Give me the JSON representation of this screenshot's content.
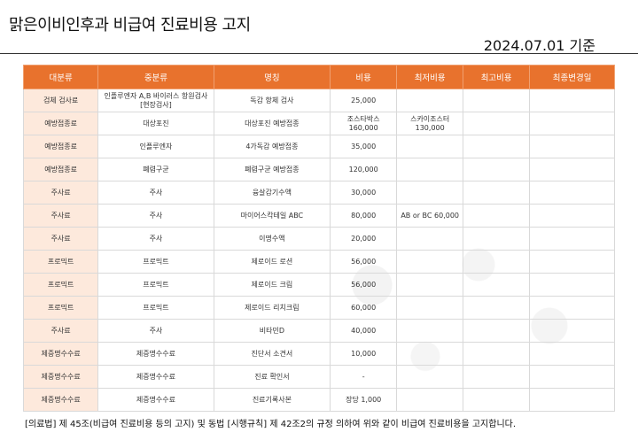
{
  "header": {
    "title": "맑은이비인후과 비급여 진료비용 고지",
    "date": "2024.07.01 기준"
  },
  "table": {
    "columns": [
      "대분류",
      "중분류",
      "명칭",
      "비용",
      "최저비용",
      "최고비용",
      "최종변경일"
    ],
    "rows": [
      [
        "검체 검사료",
        "인플루엔자 A,B 바이러스 항원검사[현장검사]",
        "독감 항체 검사",
        "25,000",
        "",
        "",
        ""
      ],
      [
        "예방접종료",
        "대상포진",
        "대상포진 예방접종",
        "조스타박스 160,000",
        "스카이조스터 130,000",
        "",
        ""
      ],
      [
        "예방접종료",
        "인플루엔자",
        "4가독감 예방접종",
        "35,000",
        "",
        "",
        ""
      ],
      [
        "예방접종료",
        "폐렴구균",
        "폐렴구균 예방접종",
        "120,000",
        "",
        "",
        ""
      ],
      [
        "주사료",
        "주사",
        "융살감기수액",
        "30,000",
        "",
        "",
        ""
      ],
      [
        "주사료",
        "주사",
        "마이어스칵테일 ABC",
        "80,000",
        "AB or BC 60,000",
        "",
        ""
      ],
      [
        "주사료",
        "주사",
        "이명수액",
        "20,000",
        "",
        "",
        ""
      ],
      [
        "프로믹트",
        "프로믹트",
        "제로이드 로션",
        "56,000",
        "",
        "",
        ""
      ],
      [
        "프로믹트",
        "프로믹트",
        "제로이드 크림",
        "56,000",
        "",
        "",
        ""
      ],
      [
        "프로믹트",
        "프로믹트",
        "제로이드 리치크림",
        "60,000",
        "",
        "",
        ""
      ],
      [
        "주사료",
        "주사",
        "비타민D",
        "40,000",
        "",
        "",
        ""
      ],
      [
        "제증명수수료",
        "제증명수수료",
        "진단서 소견서",
        "10,000",
        "",
        "",
        ""
      ],
      [
        "제증명수수료",
        "제증명수수료",
        "진료 확인서",
        "-",
        "",
        "",
        ""
      ],
      [
        "제증명수수료",
        "제증명수수료",
        "진료기록사본",
        "장당 1,000",
        "",
        "",
        ""
      ]
    ]
  },
  "footer": {
    "text": "[의료법] 제 45조(비급여 진료비용 등의 고지) 및 동법 [시행규칙] 제 42조2의 규정 의하여 위와 같이 비급여 진료비용을 고지합니다."
  },
  "colors": {
    "header_bg": "#e8722d",
    "first_col_bg": "#fde9dc"
  }
}
